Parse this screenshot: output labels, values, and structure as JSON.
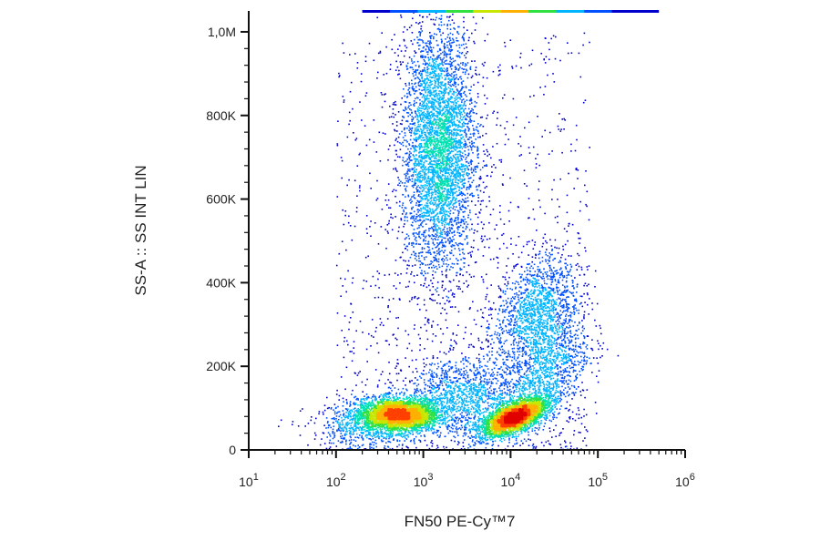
{
  "chart_data": {
    "type": "scatter",
    "subtype": "flow-cytometry-density-dot-plot",
    "title": "",
    "xlabel": "FN50 PE-Cy™7",
    "ylabel": "SS-A :: SS INT LIN",
    "x_scale": "log",
    "xlim": [
      10,
      1000000
    ],
    "ylim": [
      0,
      1050000
    ],
    "x_ticks": [
      {
        "value": 10,
        "base": "10",
        "exp": "1"
      },
      {
        "value": 100,
        "base": "10",
        "exp": "2"
      },
      {
        "value": 1000,
        "base": "10",
        "exp": "3"
      },
      {
        "value": 10000,
        "base": "10",
        "exp": "4"
      },
      {
        "value": 100000,
        "base": "10",
        "exp": "5"
      },
      {
        "value": 1000000,
        "base": "10",
        "exp": "6"
      }
    ],
    "y_ticks": [
      {
        "value": 0,
        "label": "0"
      },
      {
        "value": 200000,
        "label": "200K"
      },
      {
        "value": 400000,
        "label": "400K"
      },
      {
        "value": 600000,
        "label": "600K"
      },
      {
        "value": 800000,
        "label": "800K"
      },
      {
        "value": 1000000,
        "label": "1,0M"
      }
    ],
    "grid": false,
    "legend": "none",
    "density_colors": [
      "#0000cc",
      "#0050ff",
      "#00b4ff",
      "#00e0b0",
      "#30e040",
      "#c8e600",
      "#ffb000",
      "#ff4000",
      "#e00000"
    ],
    "populations": [
      {
        "x_center": 500,
        "y_center": 85000,
        "x_spread_decades": 0.25,
        "y_spread": 22000,
        "density": "very high"
      },
      {
        "x_center": 11000,
        "y_center": 80000,
        "x_spread_decades": 0.2,
        "y_spread": 20000,
        "density": "very high"
      },
      {
        "x_center": 1500,
        "y_center": 720000,
        "x_spread_decades": 0.22,
        "y_spread": 150000,
        "density": "medium"
      },
      {
        "x_center": 20000,
        "y_center": 330000,
        "x_spread_decades": 0.25,
        "y_spread": 70000,
        "density": "low"
      }
    ]
  }
}
